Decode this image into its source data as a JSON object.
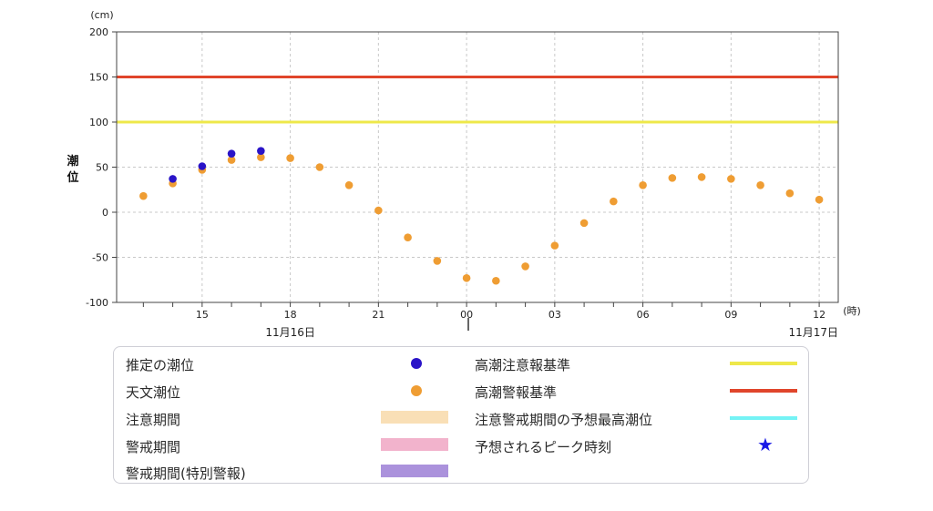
{
  "chart_data": {
    "type": "scatter",
    "y_unit_label": "(cm)",
    "x_unit_label": "(時)",
    "ylabel": "潮位",
    "ylim": [
      -100,
      200
    ],
    "yticks": [
      -100,
      -50,
      0,
      50,
      100,
      150,
      200
    ],
    "x_tick_labels": [
      "15",
      "18",
      "21",
      "00",
      "03",
      "06",
      "09",
      "12"
    ],
    "date_labels": [
      "11月16日",
      "11月17日"
    ],
    "grid": true,
    "reference_lines": [
      {
        "name": "高潮警報基準",
        "value": 150,
        "color": "#e0452b"
      },
      {
        "name": "高潮注意報基準",
        "value": 100,
        "color": "#eee84a"
      }
    ],
    "series": [
      {
        "name": "天文潮位",
        "color": "#ef9d33",
        "points": [
          [
            "11-16 13:00",
            18
          ],
          [
            "11-16 14:00",
            32
          ],
          [
            "11-16 15:00",
            47
          ],
          [
            "11-16 16:00",
            58
          ],
          [
            "11-16 17:00",
            61
          ],
          [
            "11-16 18:00",
            60
          ],
          [
            "11-16 19:00",
            50
          ],
          [
            "11-16 20:00",
            30
          ],
          [
            "11-16 21:00",
            2
          ],
          [
            "11-16 22:00",
            -28
          ],
          [
            "11-16 23:00",
            -54
          ],
          [
            "11-17 00:00",
            -73
          ],
          [
            "11-17 01:00",
            -76
          ],
          [
            "11-17 02:00",
            -60
          ],
          [
            "11-17 03:00",
            -37
          ],
          [
            "11-17 04:00",
            -12
          ],
          [
            "11-17 05:00",
            12
          ],
          [
            "11-17 06:00",
            30
          ],
          [
            "11-17 07:00",
            38
          ],
          [
            "11-17 08:00",
            39
          ],
          [
            "11-17 09:00",
            37
          ],
          [
            "11-17 10:00",
            30
          ],
          [
            "11-17 11:00",
            21
          ],
          [
            "11-17 12:00",
            14
          ]
        ]
      },
      {
        "name": "推定の潮位",
        "color": "#2a14c8",
        "points": [
          [
            "11-16 14:00",
            37
          ],
          [
            "11-16 15:00",
            51
          ],
          [
            "11-16 16:00",
            65
          ],
          [
            "11-16 17:00",
            68
          ]
        ]
      }
    ]
  },
  "legend": {
    "items": [
      {
        "label": "推定の潮位",
        "kind": "dot",
        "color": "#2a14c8"
      },
      {
        "label": "天文潮位",
        "kind": "dot",
        "color": "#ef9d33"
      },
      {
        "label": "注意期間",
        "kind": "bar",
        "color": "#f9dfb6"
      },
      {
        "label": "警戒期間",
        "kind": "bar",
        "color": "#f2b3cc"
      },
      {
        "label": "警戒期間(特別警報)",
        "kind": "bar",
        "color": "#ab92dc"
      },
      {
        "label": "高潮注意報基準",
        "kind": "line",
        "color": "#eee84a"
      },
      {
        "label": "高潮警報基準",
        "kind": "line",
        "color": "#e0452b"
      },
      {
        "label": "注意警戒期間の予想最高潮位",
        "kind": "line",
        "color": "#74f3f5"
      },
      {
        "label": "予想されるピーク時刻",
        "kind": "star",
        "color": "#1a1ae6",
        "glyph": "★"
      }
    ]
  }
}
